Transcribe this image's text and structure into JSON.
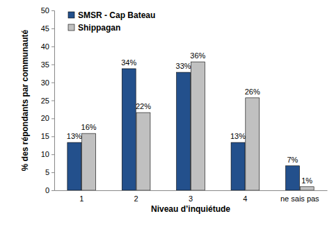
{
  "chart_data": {
    "type": "bar",
    "categories": [
      "1",
      "2",
      "3",
      "4",
      "ne sais pas"
    ],
    "series": [
      {
        "name": "SMSR - Cap Bateau",
        "color": "#23508c",
        "values": [
          13.3,
          33.8,
          32.8,
          13.3,
          6.8
        ],
        "value_labels": [
          "13%",
          "34%",
          "33%",
          "13%",
          "7%"
        ]
      },
      {
        "name": "Shippagan",
        "color": "#c0c0c0",
        "values": [
          15.8,
          21.6,
          35.7,
          25.7,
          1.0
        ],
        "value_labels": [
          "16%",
          "22%",
          "36%",
          "26%",
          "1%"
        ]
      }
    ],
    "x_label": "Niveau d’inquiétude",
    "y_label": "% des répondants par communauté",
    "ylim": [
      0,
      50
    ],
    "yticks": [
      0,
      5,
      10,
      15,
      20,
      25,
      30,
      35,
      40,
      45,
      50
    ],
    "grid": false,
    "legend": "upper left",
    "data_labels": true
  }
}
